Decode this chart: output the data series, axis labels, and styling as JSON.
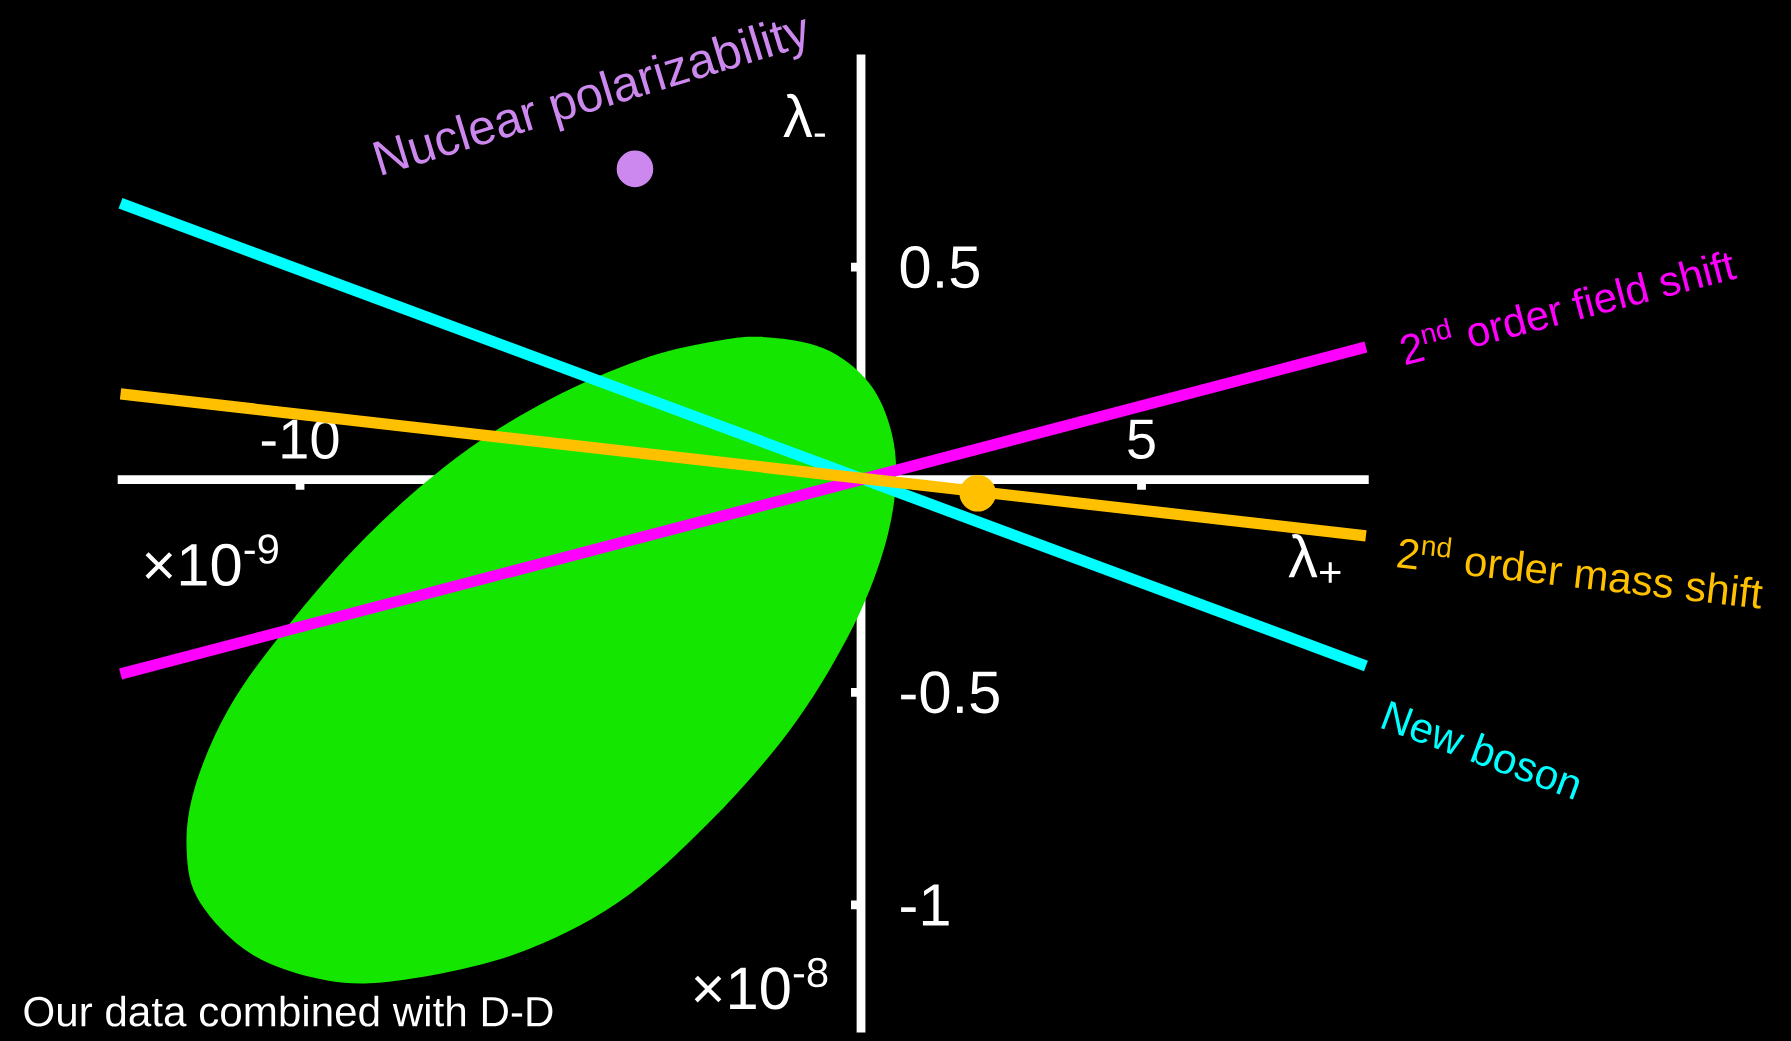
{
  "chart_data": {
    "type": "line",
    "xlabel": "λ$_{+}$",
    "ylabel": "λ$_{-}$",
    "xlim": [
      -13.25,
      9.05
    ],
    "ylim": [
      -1.3,
      1.0
    ],
    "xticks": [
      -10,
      5
    ],
    "yticks": [
      0.5,
      -0.5,
      -1
    ],
    "series": [
      {
        "type": "area",
        "color": "#14e600",
        "x": [
          -1.79,
          -0.67,
          0.14,
          0.55,
          0.61,
          0.35,
          -0.26,
          -1.28,
          -2.71,
          -4.34,
          -6.17,
          -8.21,
          -9.54,
          -10.86,
          -11.78,
          -12.02,
          -11.88,
          -11.27,
          -10.25,
          -8.82,
          -7.19,
          -5.56,
          -3.93,
          -2.71
        ],
        "values": [
          0.336,
          0.309,
          0.228,
          0.108,
          -0.027,
          -0.188,
          -0.376,
          -0.591,
          -0.806,
          -0.995,
          -1.116,
          -1.177,
          -1.177,
          -1.116,
          -0.995,
          -0.874,
          -0.726,
          -0.538,
          -0.349,
          -0.134,
          0.054,
          0.188,
          0.282,
          0.323
        ]
      },
      {
        "type": "line",
        "name": "New boson",
        "color": "#00ffff",
        "marker": "none",
        "x": [
          -13.2,
          9.0
        ],
        "values": [
          0.65,
          -0.438
        ]
      },
      {
        "type": "line",
        "name": "2$^{nd}$ order field shift",
        "color": "#ff00ff",
        "marker": "none",
        "x": [
          -13.2,
          9.0
        ],
        "values": [
          -0.457,
          0.312
        ]
      },
      {
        "type": "line",
        "name": "2$^{nd}$ order mass shift",
        "color": "#ffc000",
        "marker": "none",
        "x": [
          -13.2,
          9.0
        ],
        "values": [
          0.202,
          -0.132
        ]
      },
      {
        "type": "scatter",
        "color": "#ffc000",
        "marker": "circle",
        "x": [
          2.08
        ],
        "values": [
          -0.032
        ]
      },
      {
        "type": "scatter",
        "name": "Nuclear polarizability",
        "color": "#cc88ee",
        "marker": "circle",
        "x": [
          -4.03
        ],
        "values": [
          0.731
        ]
      }
    ],
    "annotations": [
      "×10$^{-9}$",
      "×10$^{-8}$",
      "Our data combined with D-D"
    ]
  }
}
